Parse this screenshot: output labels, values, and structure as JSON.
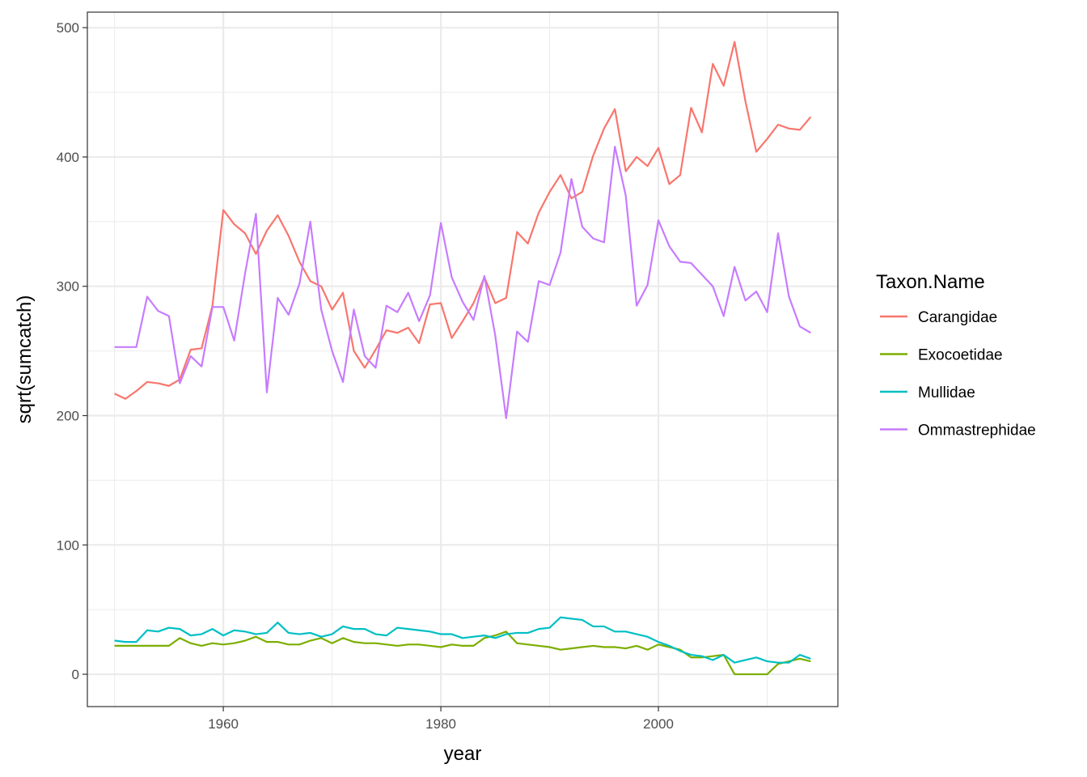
{
  "chart_data": {
    "type": "line",
    "xlabel": "year",
    "ylabel": "sqrt(sumcatch)",
    "xlim": [
      1947.5,
      2016.5
    ],
    "ylim": [
      -25,
      512
    ],
    "x_ticks": [
      1960,
      1980,
      2000
    ],
    "x_tick_labels": [
      "1960",
      "1980",
      "2000"
    ],
    "x_minor_ticks": [
      1950,
      1970,
      1990,
      2010
    ],
    "y_ticks": [
      0,
      100,
      200,
      300,
      400,
      500
    ],
    "y_tick_labels": [
      "0",
      "100",
      "200",
      "300",
      "400",
      "500"
    ],
    "y_minor_ticks": [
      50,
      150,
      250,
      350,
      450
    ],
    "grid": true,
    "legend": {
      "title": "Taxon.Name",
      "position": "right"
    },
    "x_start": 1950,
    "series": [
      {
        "name": "Carangidae",
        "color": "#F8766D",
        "values": [
          217,
          213,
          219,
          226,
          225,
          223,
          228,
          251,
          252,
          285,
          359,
          348,
          341,
          325,
          343,
          355,
          339,
          319,
          304,
          300,
          282,
          295,
          250,
          237,
          251,
          266,
          264,
          268,
          256,
          286,
          287,
          260,
          273,
          287,
          307,
          287,
          291,
          342,
          333,
          357,
          373,
          386,
          368,
          373,
          401,
          422,
          437,
          389,
          400,
          393,
          407,
          379,
          386,
          438,
          419,
          472,
          455,
          489,
          443,
          404,
          414,
          425,
          422,
          421,
          431
        ]
      },
      {
        "name": "Exocoetidae",
        "color": "#7CAE00",
        "values": [
          22,
          22,
          22,
          22,
          22,
          22,
          28,
          24,
          22,
          24,
          23,
          24,
          26,
          29,
          25,
          25,
          23,
          23,
          26,
          28,
          24,
          28,
          25,
          24,
          24,
          23,
          22,
          23,
          23,
          22,
          21,
          23,
          22,
          22,
          28,
          30,
          33,
          24,
          23,
          22,
          21,
          19,
          20,
          21,
          22,
          21,
          21,
          20,
          22,
          19,
          23,
          21,
          19,
          13,
          13,
          14,
          15,
          0,
          0,
          0,
          0,
          8,
          10,
          12,
          10
        ]
      },
      {
        "name": "Mullidae",
        "color": "#00BFC4",
        "values": [
          26,
          25,
          25,
          34,
          33,
          36,
          35,
          30,
          31,
          35,
          30,
          34,
          33,
          31,
          32,
          40,
          32,
          31,
          32,
          29,
          31,
          37,
          35,
          35,
          31,
          30,
          36,
          35,
          34,
          33,
          31,
          31,
          28,
          29,
          30,
          28,
          31,
          32,
          32,
          35,
          36,
          44,
          43,
          42,
          37,
          37,
          33,
          33,
          31,
          29,
          25,
          22,
          18,
          15,
          14,
          11,
          15,
          9,
          11,
          13,
          10,
          9,
          9,
          15,
          12
        ]
      },
      {
        "name": "Ommastrephidae",
        "color": "#C77CFF",
        "values": [
          253,
          253,
          253,
          292,
          281,
          277,
          225,
          246,
          238,
          284,
          284,
          258,
          310,
          356,
          218,
          291,
          278,
          302,
          350,
          282,
          250,
          226,
          282,
          246,
          237,
          285,
          280,
          295,
          273,
          293,
          349,
          307,
          288,
          274,
          308,
          262,
          198,
          265,
          257,
          304,
          301,
          326,
          383,
          346,
          337,
          334,
          408,
          370,
          285,
          301,
          351,
          331,
          319,
          318,
          309,
          300,
          277,
          315,
          289,
          296,
          280,
          341,
          292,
          269,
          264
        ]
      }
    ]
  }
}
